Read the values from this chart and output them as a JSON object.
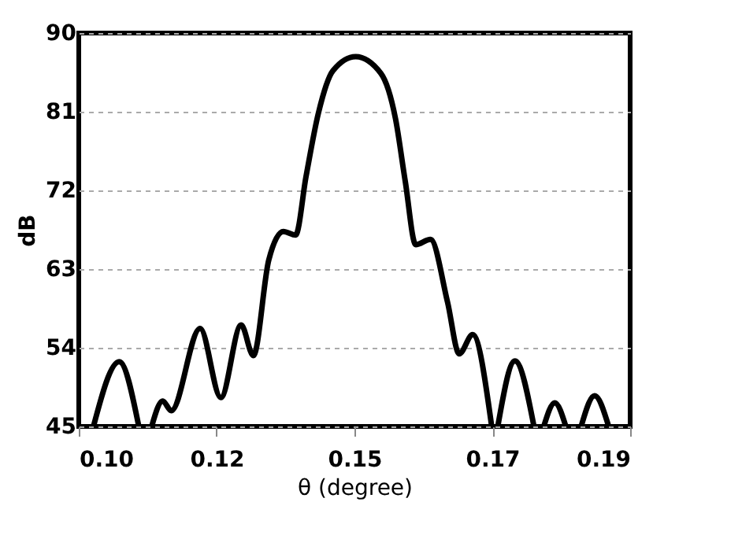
{
  "chart_data": {
    "type": "line",
    "xlabel": "θ (degree)",
    "ylabel": "dB",
    "x": [
      0.1024,
      0.1066,
      0.1098,
      0.1108,
      0.1119,
      0.1137,
      0.1151,
      0.1198,
      0.1232,
      0.1265,
      0.1285,
      0.131,
      0.1334,
      0.1354,
      0.1371,
      0.1391,
      0.1415,
      0.1452,
      0.1493,
      0.1517,
      0.1533,
      0.155,
      0.1574,
      0.1602,
      0.1621,
      0.1643,
      0.1674,
      0.1679,
      0.1684,
      0.1712,
      0.1743,
      0.175,
      0.1759,
      0.1777,
      0.1795,
      0.181,
      0.182,
      0.1842,
      0.1865
    ],
    "series": [
      {
        "color": "#000000",
        "line_style": "solid",
        "values": [
          45,
          52.4,
          45,
          null,
          45,
          47.9,
          46.8,
          56.2,
          48.3,
          56.6,
          53.1,
          64.0,
          67.3,
          66.9,
          73.6,
          80.8,
          85.7,
          87.3,
          85.4,
          80.2,
          73.0,
          65.8,
          66.4,
          59.2,
          53.3,
          55.5,
          45,
          null,
          45,
          52.5,
          45,
          null,
          45,
          47.7,
          45,
          null,
          45,
          48.5,
          45
        ]
      }
    ],
    "xlim": [
      0.1,
      0.19
    ],
    "xticks": [
      {
        "value": 0.1,
        "label": "0.10"
      },
      {
        "value": 0.1225,
        "label": "0.12"
      },
      {
        "value": 0.145,
        "label": "0.15"
      },
      {
        "value": 0.1675,
        "label": "0.17"
      },
      {
        "value": 0.19,
        "label": "0.19"
      }
    ],
    "ylim": [
      45,
      90
    ],
    "yticks": [
      45,
      54,
      63,
      72,
      81,
      90
    ],
    "grid": "y",
    "marker": "none"
  }
}
